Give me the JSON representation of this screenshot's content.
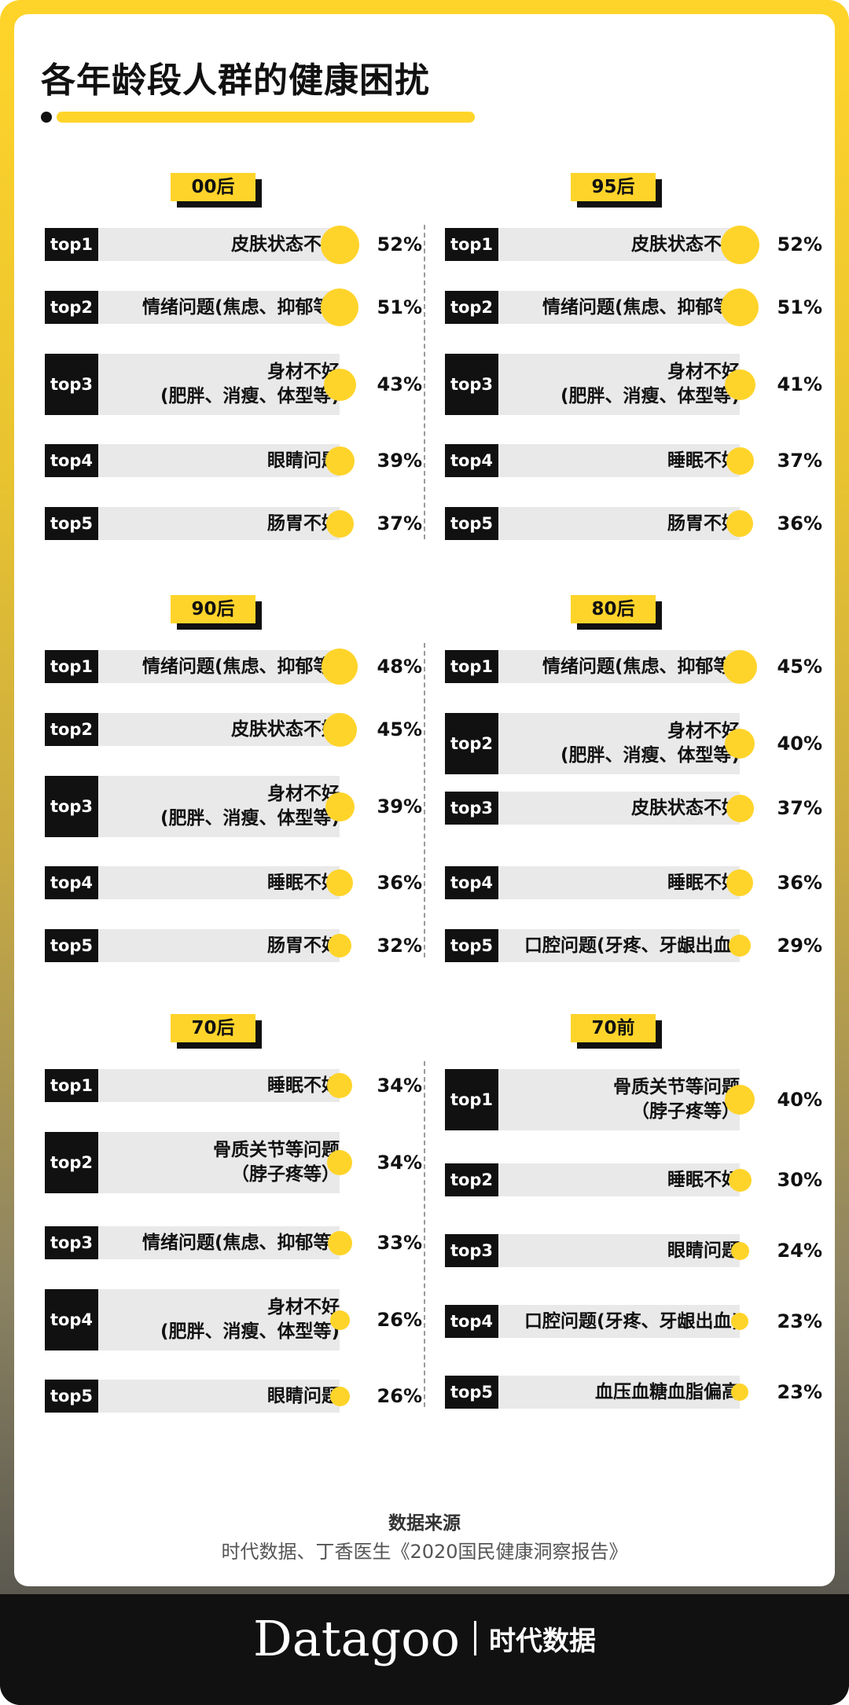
{
  "title": "各年龄段人群的健康困扰",
  "colors": {
    "accent": "#ffd42a",
    "label_bg": "#111111",
    "bar_bg": "#e9e9e9"
  },
  "source": {
    "label": "数据来源",
    "text": "时代数据、丁香医生《2020国民健康洞察报告》"
  },
  "brand": {
    "name": "Datagoo",
    "cn": "时代数据"
  },
  "chart_data": [
    {
      "type": "bar",
      "group": "00后",
      "categories": [
        "皮肤状态不好",
        "情绪问题(焦虑、抑郁等)",
        "身材不好\n(肥胖、消瘦、体型等)",
        "眼睛问题",
        "肠胃不好"
      ],
      "values": [
        52,
        51,
        43,
        39,
        37
      ],
      "labels": [
        "52%",
        "51%",
        "43%",
        "39%",
        "37%"
      ],
      "ranks": [
        "top1",
        "top2",
        "top3",
        "top4",
        "top5"
      ]
    },
    {
      "type": "bar",
      "group": "95后",
      "categories": [
        "皮肤状态不好",
        "情绪问题(焦虑、抑郁等)",
        "身材不好\n(肥胖、消瘦、体型等)",
        "睡眠不好",
        "肠胃不好"
      ],
      "values": [
        52,
        51,
        41,
        37,
        36
      ],
      "labels": [
        "52%",
        "51%",
        "41%",
        "37%",
        "36%"
      ],
      "ranks": [
        "top1",
        "top2",
        "top3",
        "top4",
        "top5"
      ]
    },
    {
      "type": "bar",
      "group": "90后",
      "categories": [
        "情绪问题(焦虑、抑郁等)",
        "皮肤状态不好",
        "身材不好\n(肥胖、消瘦、体型等)",
        "睡眠不好",
        "肠胃不好"
      ],
      "values": [
        48,
        45,
        39,
        36,
        32
      ],
      "labels": [
        "48%",
        "45%",
        "39%",
        "36%",
        "32%"
      ],
      "ranks": [
        "top1",
        "top2",
        "top3",
        "top4",
        "top5"
      ]
    },
    {
      "type": "bar",
      "group": "80后",
      "categories": [
        "情绪问题(焦虑、抑郁等)",
        "身材不好\n(肥胖、消瘦、体型等)",
        "皮肤状态不好",
        "睡眠不好",
        "口腔问题(牙疼、牙龈出血)"
      ],
      "values": [
        45,
        40,
        37,
        36,
        29
      ],
      "labels": [
        "45%",
        "40%",
        "37%",
        "36%",
        "29%"
      ],
      "ranks": [
        "top1",
        "top2",
        "top3",
        "top4",
        "top5"
      ]
    },
    {
      "type": "bar",
      "group": "70后",
      "categories": [
        "睡眠不好",
        "骨质关节等问题\n（脖子疼等）",
        "情绪问题(焦虑、抑郁等)",
        "身材不好\n(肥胖、消瘦、体型等)",
        "眼睛问题"
      ],
      "values": [
        34,
        34,
        33,
        26,
        26
      ],
      "labels": [
        "34%",
        "34%",
        "33%",
        "26%",
        "26%"
      ],
      "ranks": [
        "top1",
        "top2",
        "top3",
        "top4",
        "top5"
      ]
    },
    {
      "type": "bar",
      "group": "70前",
      "categories": [
        "骨质关节等问题\n（脖子疼等）",
        "睡眠不好",
        "眼睛问题",
        "口腔问题(牙疼、牙龈出血)",
        "血压血糖血脂偏高"
      ],
      "values": [
        40,
        30,
        24,
        23,
        23
      ],
      "labels": [
        "40%",
        "30%",
        "24%",
        "23%",
        "23%"
      ],
      "ranks": [
        "top1",
        "top2",
        "top3",
        "top4",
        "top5"
      ]
    }
  ]
}
